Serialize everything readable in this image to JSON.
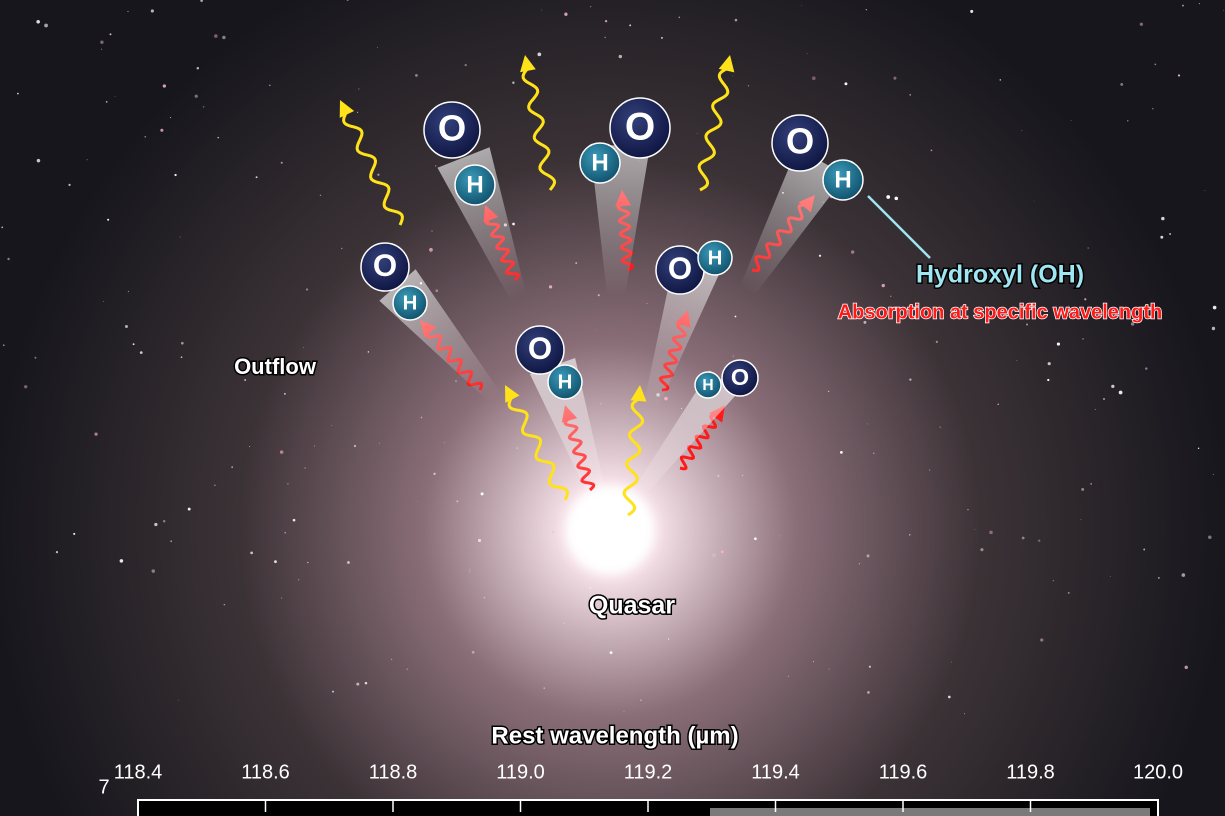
{
  "illustration": {
    "labels": {
      "outflow": "Outflow",
      "quasar": "Quasar",
      "molecule": "Hydroxyl (OH)",
      "absorption": "Absorption at specific wavelength"
    },
    "atoms": {
      "oxygen": "O",
      "hydrogen": "H"
    },
    "axis": {
      "title": "Rest wavelength (µm)",
      "ticks": [
        "118.4",
        "118.6",
        "118.8",
        "119.0",
        "119.2",
        "119.4",
        "119.6",
        "119.8",
        "120.0"
      ],
      "y_tick": "7"
    }
  }
}
